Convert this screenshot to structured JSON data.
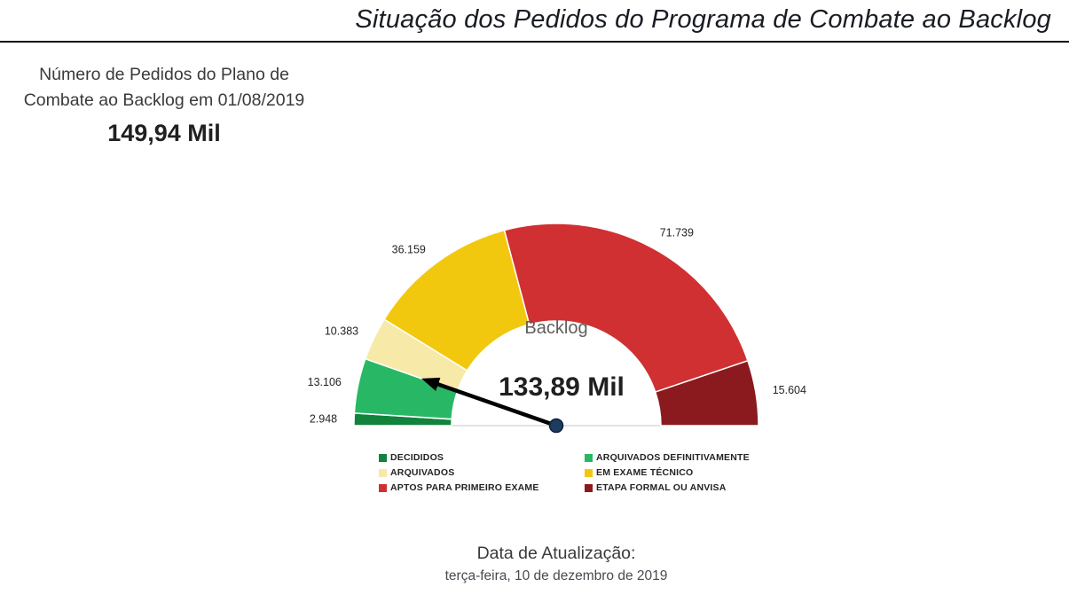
{
  "header": {
    "title": "Situação dos Pedidos do Programa de Combate ao Backlog"
  },
  "kpi": {
    "title_line1": "Número de Pedidos do Plano de",
    "title_line2": "Combate ao Backlog em 01/08/2019",
    "value": "149,94 Mil"
  },
  "footer": {
    "label": "Data de Atualização:",
    "date": "terça-feira, 10 de dezembro de 2019"
  },
  "chart_data": {
    "type": "pie",
    "subtype": "half-donut-gauge",
    "center_title": "Backlog",
    "needle_label": "133,89 Mil",
    "needle_value": 133885,
    "total_value": 149939,
    "total_label": "149,94 Mil",
    "legend_position": "bottom",
    "colors": {
      "needle": "#000000",
      "pivot": "#1d3c5f",
      "pivot_ring": "#0d1f38",
      "baseline": "#c8c6c4",
      "label_text": "#252423"
    },
    "segments": [
      {
        "label": "DECIDIDOS",
        "value": 2948,
        "data_label": "2.948",
        "color": "#11833c"
      },
      {
        "label": "ARQUIVADOS DEFINITIVAMENTE",
        "value": 13106,
        "data_label": "13.106",
        "color": "#28b865"
      },
      {
        "label": "ARQUIVADOS",
        "value": 10383,
        "data_label": "10.383",
        "color": "#f7e9a8"
      },
      {
        "label": "EM EXAME TÉCNICO",
        "value": 36159,
        "data_label": "36.159",
        "color": "#f2c80f"
      },
      {
        "label": "APTOS PARA PRIMEIRO EXAME",
        "value": 71739,
        "data_label": "71.739",
        "color": "#d03032"
      },
      {
        "label": "ETAPA FORMAL OU ANVISA",
        "value": 15604,
        "data_label": "15.604",
        "color": "#8a1a1e"
      }
    ]
  }
}
